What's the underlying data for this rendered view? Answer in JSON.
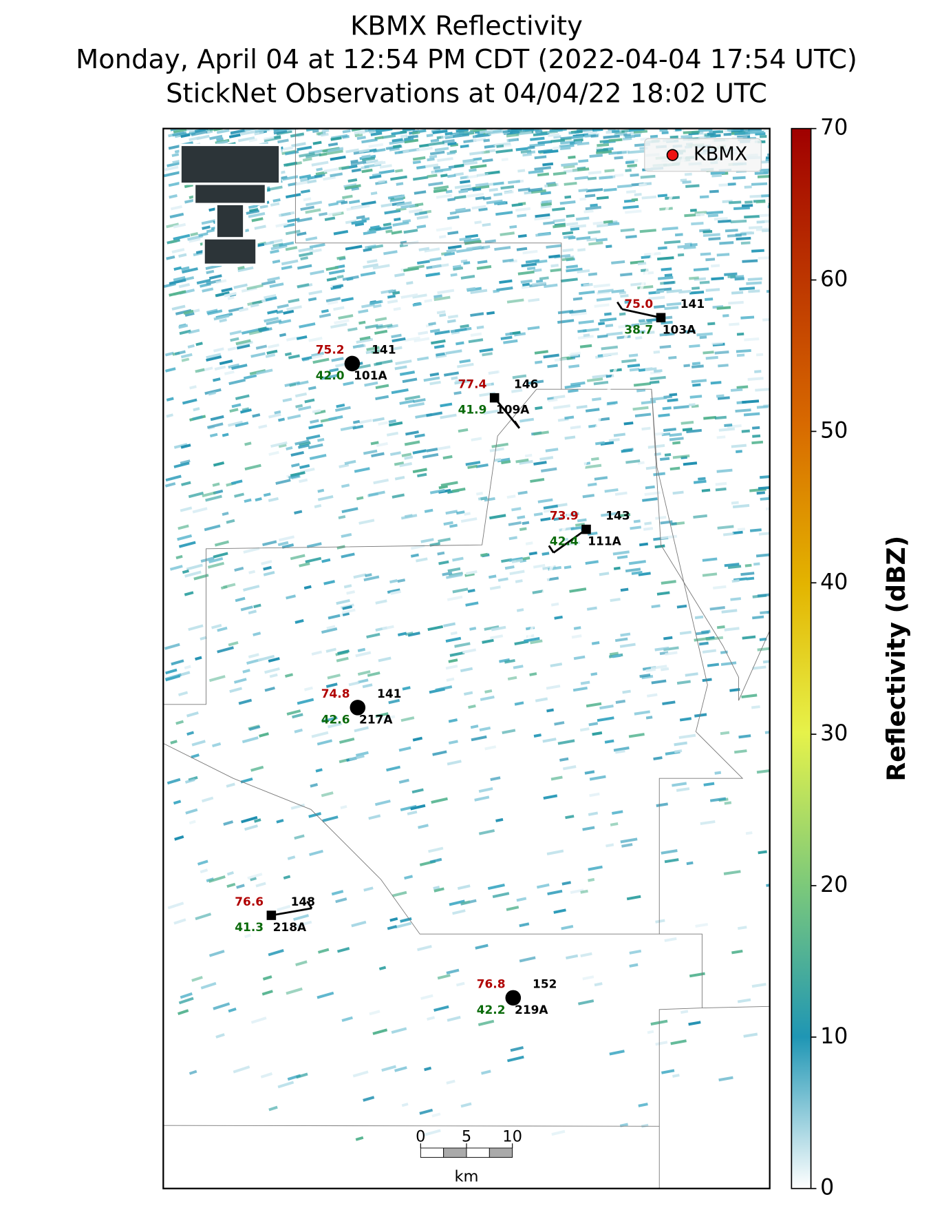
{
  "title": [
    "KBMX Reflectivity",
    "Monday, April 04 at 12:54 PM CDT (2022-04-04 17:54 UTC)",
    "StickNet Observations at 04/04/22 18:02 UTC"
  ],
  "legend": {
    "label": "KBMX",
    "corner": "upper right",
    "color": "#ee1111"
  },
  "colorbar": {
    "label": "Reflectivity (dBZ)",
    "clim": [
      0,
      70
    ],
    "ticks": [
      0,
      10,
      20,
      30,
      40,
      50,
      60,
      70
    ]
  },
  "stations": [
    {
      "id": "101A",
      "marker": "circle",
      "temperature": 75.2,
      "dewpoint": 42.0,
      "dewpoint_label": "42.0",
      "value": 141
    },
    {
      "id": "109A",
      "marker": "square",
      "temperature": 77.4,
      "dewpoint": 41.9,
      "dewpoint_label": "41.9",
      "value": 146
    },
    {
      "id": "103A",
      "marker": "square",
      "temperature": 75.0,
      "temperature_label": "75.0",
      "dewpoint": 38.7,
      "dewpoint_label": "38.7",
      "value": 141
    },
    {
      "id": "111A",
      "marker": "square",
      "temperature": 73.9,
      "dewpoint": 42.4,
      "dewpoint_label": "42.4",
      "value": 143
    },
    {
      "id": "217A",
      "marker": "circle",
      "temperature": 74.8,
      "dewpoint": 42.6,
      "dewpoint_label": "42.6",
      "value": 141
    },
    {
      "id": "218A",
      "marker": "square",
      "temperature": 76.6,
      "dewpoint": 41.3,
      "dewpoint_label": "41.3",
      "value": 148
    },
    {
      "id": "219A",
      "marker": "circle",
      "temperature": 76.8,
      "dewpoint": 42.2,
      "dewpoint_label": "42.2",
      "value": 152
    }
  ],
  "scale_bar": {
    "ticks": [
      0,
      5,
      10
    ],
    "unit": "km"
  }
}
